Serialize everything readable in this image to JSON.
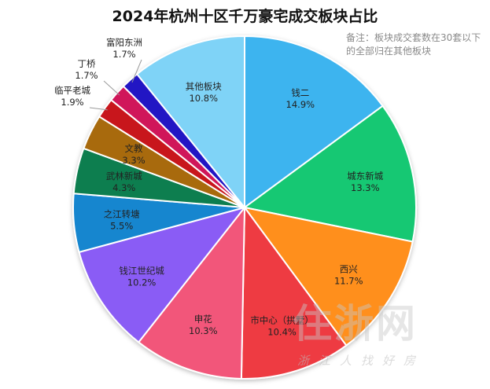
{
  "chart_data": {
    "type": "pie",
    "title": "2024年杭州十区千万豪宅成交板块占比",
    "note": "备注：板块成交套数在30套以下的全部归在其他板块",
    "slices": [
      {
        "label": "钱二",
        "value": 14.9,
        "display": "14.9%",
        "color": "#3EB4EF"
      },
      {
        "label": "城东新城",
        "value": 13.3,
        "display": "13.3%",
        "color": "#17C873"
      },
      {
        "label": "西兴",
        "value": 11.7,
        "display": "11.7%",
        "color": "#FF8F1F"
      },
      {
        "label": "市中心（拱墅）",
        "value": 10.4,
        "display": "10.4%",
        "color": "#EE3B43"
      },
      {
        "label": "申花",
        "value": 10.3,
        "display": "10.3%",
        "color": "#F2577A"
      },
      {
        "label": "钱江世纪城",
        "value": 10.2,
        "display": "10.2%",
        "color": "#8A5BF5"
      },
      {
        "label": "之江转塘",
        "value": 5.5,
        "display": "5.5%",
        "color": "#1586CF"
      },
      {
        "label": "武林新城",
        "value": 4.3,
        "display": "4.3%",
        "color": "#0E7E4F"
      },
      {
        "label": "文教",
        "value": 3.3,
        "display": "3.3%",
        "color": "#A86A10"
      },
      {
        "label": "临平老城",
        "value": 1.9,
        "display": "1.9%",
        "color": "#C8161D"
      },
      {
        "label": "丁桥",
        "value": 1.7,
        "display": "1.7%",
        "color": "#D0145A"
      },
      {
        "label": "富阳东洲",
        "value": 1.7,
        "display": "1.7%",
        "color": "#2418C4"
      },
      {
        "label": "其他板块",
        "value": 10.8,
        "display": "10.8%",
        "color": "#7FD3F7"
      }
    ]
  },
  "watermark": {
    "main": "住浙网",
    "sub": "浙江人找好房"
  }
}
